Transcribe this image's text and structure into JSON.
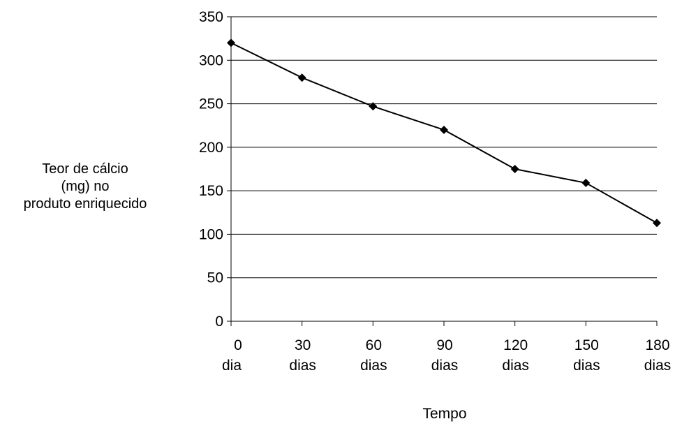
{
  "chart_data": {
    "type": "line",
    "title": "",
    "ylabel": [
      "Teor de cálcio",
      "(mg) no",
      "produto enriquecido"
    ],
    "xlabel": "Tempo",
    "x": [
      0,
      30,
      60,
      90,
      120,
      150,
      180
    ],
    "x_tick_labels": [
      [
        "0",
        "dia"
      ],
      [
        "30",
        "dias"
      ],
      [
        "60",
        "dias"
      ],
      [
        "90",
        "dias"
      ],
      [
        "120",
        "dias"
      ],
      [
        "150",
        "dias"
      ],
      [
        "180",
        "dias"
      ]
    ],
    "series": [
      {
        "values": [
          320,
          280,
          247,
          220,
          175,
          159,
          113
        ]
      }
    ],
    "ylim": [
      0,
      350
    ],
    "yticks": [
      0,
      50,
      100,
      150,
      200,
      250,
      300,
      350
    ],
    "xlim": [
      0,
      180
    ],
    "grid": "horizontal",
    "legend": "none",
    "colors": {
      "line": "#000000",
      "marker": "#000000",
      "grid": "#000000"
    }
  }
}
